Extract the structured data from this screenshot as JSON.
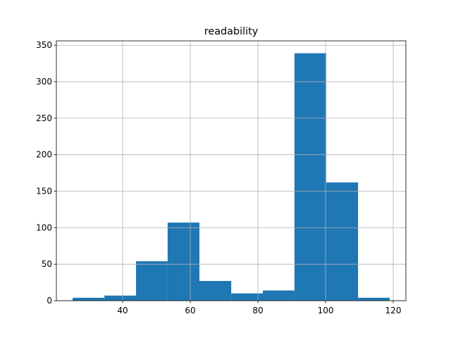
{
  "chart_data": {
    "type": "histogram",
    "title": "readability",
    "bins": [
      25.2,
      34.6,
      43.95,
      53.3,
      62.7,
      72.1,
      81.45,
      90.8,
      100.2,
      109.6,
      118.95
    ],
    "counts": [
      4,
      7,
      54,
      107,
      27,
      10,
      14,
      339,
      162,
      4
    ],
    "color": "#1f77b4",
    "xlim": [
      20.4,
      123.75
    ],
    "xticks": [
      40,
      60,
      80,
      100,
      120
    ],
    "ylim": [
      0,
      356
    ],
    "yticks": [
      0,
      50,
      100,
      150,
      200,
      250,
      300,
      350
    ],
    "grid": true
  }
}
